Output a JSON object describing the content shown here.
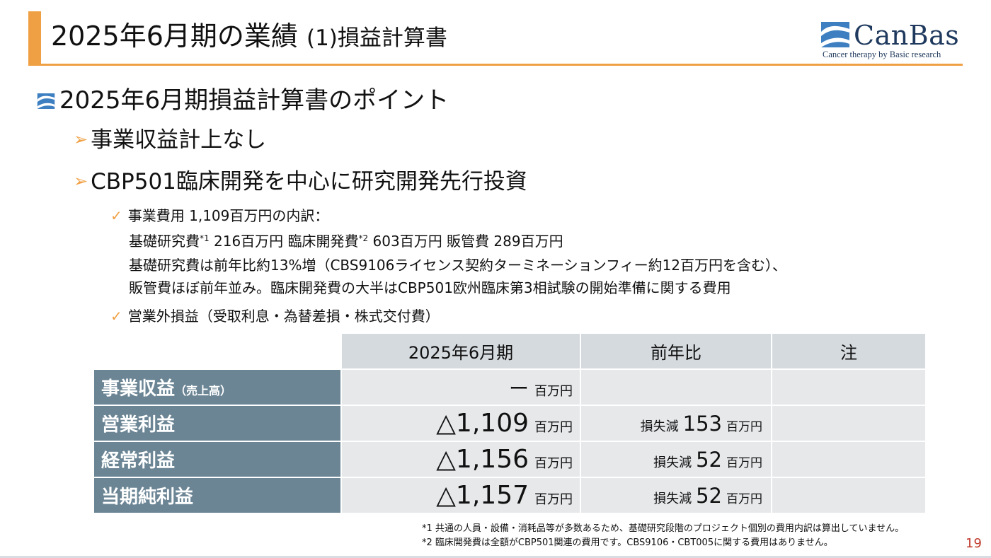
{
  "header": {
    "title_main": "2025年6月期の業績",
    "title_sub": "(1)損益計算書"
  },
  "logo": {
    "wordmark": "CanBas",
    "tagline": "Cancer therapy by Basic research"
  },
  "points": {
    "heading": "2025年6月期損益計算書のポイント",
    "bullets": [
      "事業収益計上なし",
      "CBP501臨床開発を中心に研究開発先行投資"
    ],
    "check1": {
      "label": "事業費用 1,109百万円の内訳：",
      "line1_a": "基礎研究費",
      "line1_sup1": "*1",
      "line1_b": " 216百万円 臨床開発費",
      "line1_sup2": "*2",
      "line1_c": " 603百万円 販管費 289百万円",
      "line2": "基礎研究費は前年比約13%増（CBS9106ライセンス契約ターミネーションフィー約12百万円を含む）、",
      "line3": "販管費ほぼ前年並み。臨床開発費の大半はCBP501欧州臨床第3相試験の開始準備に関する費用"
    },
    "check2": "営業外損益（受取利息・為替差損・株式交付費）"
  },
  "table": {
    "headers": [
      "2025年6月期",
      "前年比",
      "注"
    ],
    "rows": [
      {
        "label": "事業収益",
        "label_note": "（売上高）",
        "value": "ー",
        "unit": "百万円",
        "yoy_label": "",
        "yoy_value": "",
        "yoy_unit": "",
        "note": ""
      },
      {
        "label": "営業利益",
        "label_note": "",
        "value": "△1,109",
        "unit": "百万円",
        "yoy_label": "損失減",
        "yoy_value": "153",
        "yoy_unit": "百万円",
        "note": ""
      },
      {
        "label": "経常利益",
        "label_note": "",
        "value": "△1,156",
        "unit": "百万円",
        "yoy_label": "損失減",
        "yoy_value": "52",
        "yoy_unit": "百万円",
        "note": ""
      },
      {
        "label": "当期純利益",
        "label_note": "",
        "value": "△1,157",
        "unit": "百万円",
        "yoy_label": "損失減",
        "yoy_value": "52",
        "yoy_unit": "百万円",
        "note": ""
      }
    ]
  },
  "footnotes": [
    "*1 共通の人員・設備・消耗品等が多数あるため、基礎研究段階のプロジェクト個別の費用内訳は算出していません。",
    "*2 臨床開発費は全額がCBP501関連の費用です。CBS9106・CBT005に関する費用はありません。"
  ],
  "page_number": "19",
  "colors": {
    "accent_orange": "#f0a044",
    "row_label_bg": "#6b8595",
    "header_bg": "#d5dadf",
    "cell_bg": "#e6e8ea",
    "brand_navy": "#1f3a5e",
    "page_number": "#c0392b"
  },
  "icons": {
    "bullet_marker": "canbas-mark-icon",
    "arrow": "arrow-right-icon",
    "check": "check-icon"
  }
}
